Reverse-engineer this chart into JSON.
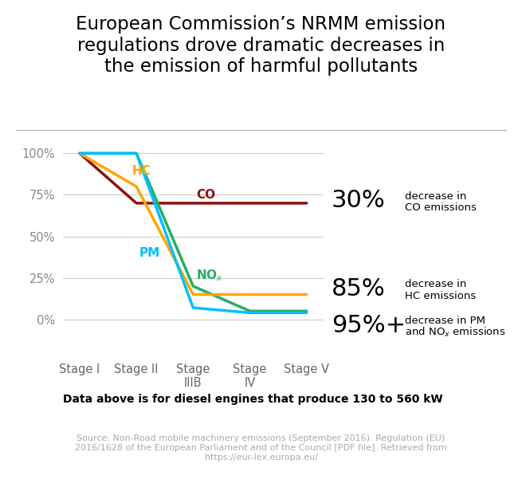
{
  "title": "European Commission’s NRMM emission\nregulations drove dramatic decreases in\nthe emission of harmful pollutants",
  "stages": [
    "Stage I",
    "Stage II",
    "Stage\nIIIB",
    "Stage\nIV",
    "Stage V"
  ],
  "stage_x": [
    0,
    1,
    2,
    3,
    4
  ],
  "CO_values": [
    100,
    70,
    70,
    70,
    70
  ],
  "HC_values": [
    100,
    80,
    15,
    15,
    15
  ],
  "NOx_values": [
    100,
    100,
    20,
    5,
    5
  ],
  "PM_values": [
    100,
    100,
    7,
    4,
    4
  ],
  "CO_color": "#8B1010",
  "HC_color": "#FFA500",
  "NOx_color": "#27AE60",
  "PM_color": "#00BFFF",
  "background_color": "#FFFFFF",
  "grid_color": "#CCCCCC",
  "yticks": [
    0,
    25,
    50,
    75,
    100
  ],
  "ytick_labels": [
    "0%",
    "25%",
    "50%",
    "75%",
    "100%"
  ],
  "ylim": [
    -20,
    108
  ],
  "line_width": 2.5,
  "title_fontsize": 16.5,
  "note": "Data above is for diesel engines that produce 130 to 560 kW",
  "source": "Source: Non-Road mobile machinery emissions (September 2016). Regulation (EU)\n2016/1628 of the European Parliament and of the Council [PDF file]. Retrieved from\nhttps://eur-lex.europa.eu/"
}
